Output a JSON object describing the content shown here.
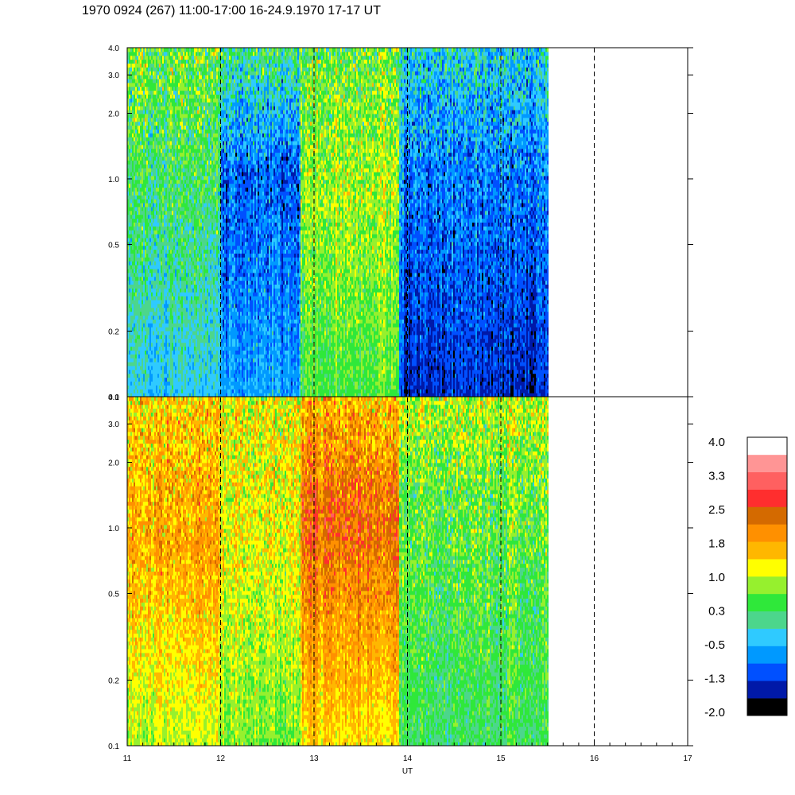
{
  "title": "1970 0924 (267) 11:00-17:00 16-24.9.1970  17-17 UT",
  "chart_data": {
    "type": "heatmap",
    "title": "1970 0924 (267) 11:00-17:00 16-24.9.1970  17-17 UT",
    "xlabel": "UT",
    "ylabel": "",
    "x_ticks": [
      "11",
      "12",
      "13",
      "14",
      "15",
      "16",
      "17"
    ],
    "xlim": [
      11,
      17
    ],
    "data_end_ut": 15.5,
    "y_scale": "log",
    "ylim": [
      0.1,
      4.0
    ],
    "y_ticks": [
      "0.1",
      "0.2",
      "0.5",
      "1.0",
      "2.0",
      "3.0",
      "4.0"
    ],
    "grid": "dashed vertical lines at each hour",
    "panels": [
      {
        "name": "top",
        "segments": [
          {
            "x": [
              11.0,
              12.0
            ],
            "low": -0.3,
            "mid": 0.3,
            "high": 0.6,
            "peak_at": 1.0
          },
          {
            "x": [
              12.0,
              12.85
            ],
            "low": -0.6,
            "mid": -1.0,
            "high": 0.2,
            "peak_at": 1.0
          },
          {
            "x": [
              12.85,
              13.9
            ],
            "low": 0.5,
            "mid": 0.9,
            "high": 0.6,
            "peak_at": 0.9
          },
          {
            "x": [
              13.9,
              15.5
            ],
            "low": -1.3,
            "mid": -0.8,
            "high": -0.2,
            "peak_at": 1.0
          }
        ]
      },
      {
        "name": "bottom",
        "segments": [
          {
            "x": [
              11.0,
              12.0
            ],
            "low": 0.9,
            "mid": 1.7,
            "high": 1.4,
            "peak_at": 0.85
          },
          {
            "x": [
              12.0,
              12.85
            ],
            "low": 0.7,
            "mid": 1.2,
            "high": 1.2,
            "peak_at": 1.0
          },
          {
            "x": [
              12.85,
              13.9
            ],
            "low": 1.3,
            "mid": 2.3,
            "high": 1.6,
            "peak_at": 1.1
          },
          {
            "x": [
              13.9,
              15.5
            ],
            "low": 0.3,
            "mid": 0.6,
            "high": 1.0,
            "peak_at": 1.5
          }
        ]
      }
    ],
    "colorbar": {
      "labels": [
        "4.0",
        "3.3",
        "2.5",
        "1.8",
        "1.0",
        "0.3",
        "-0.5",
        "-1.3",
        "-2.0"
      ],
      "range": [
        -2.0,
        4.0
      ],
      "colors": [
        "#000000",
        "#0019a8",
        "#0050ff",
        "#0099ff",
        "#2fcaff",
        "#4cd68c",
        "#2fe83a",
        "#96f02e",
        "#ffff00",
        "#ffb700",
        "#ff9000",
        "#d46a00",
        "#ff2e2e",
        "#ff6060",
        "#ff9595",
        "#ffffff"
      ]
    }
  }
}
